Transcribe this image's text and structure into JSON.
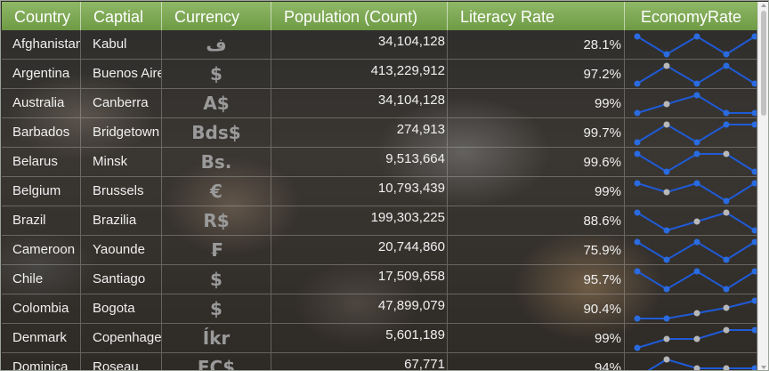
{
  "headers": {
    "country": "Country",
    "capital": "Captial",
    "currency": "Currency",
    "population": "Population (Count)",
    "literacy": "Literacy Rate",
    "economy": "EconomyRate"
  },
  "rows": [
    {
      "country": "Afghanistan",
      "capital": "Kabul",
      "currency": "ﻑ",
      "population": "34,104,128",
      "literacy": "28.1%",
      "economy": [
        1,
        0,
        1,
        0,
        1
      ]
    },
    {
      "country": "Argentina",
      "capital": "Buenos Aires",
      "currency": "$",
      "population": "413,229,912",
      "literacy": "97.2%",
      "economy": [
        0,
        1,
        0,
        1,
        0
      ]
    },
    {
      "country": "Australia",
      "capital": "Canberra",
      "currency": "A$",
      "population": "34,104,128",
      "literacy": "99%",
      "economy": [
        0,
        0.5,
        1,
        0,
        0
      ]
    },
    {
      "country": "Barbados",
      "capital": "Bridgetown",
      "currency": "Bds$",
      "population": "274,913",
      "literacy": "99.7%",
      "economy": [
        0,
        1,
        0,
        1,
        1
      ]
    },
    {
      "country": "Belarus",
      "capital": "Minsk",
      "currency": "Bs.",
      "population": "9,513,664",
      "literacy": "99.6%",
      "economy": [
        1,
        0,
        1,
        1,
        0
      ]
    },
    {
      "country": "Belgium",
      "capital": "Brussels",
      "currency": "€",
      "population": "10,793,439",
      "literacy": "99%",
      "economy": [
        1,
        0.5,
        1,
        0,
        1
      ]
    },
    {
      "country": "Brazil",
      "capital": "Brazilia",
      "currency": "R$",
      "population": "199,303,225",
      "literacy": "88.6%",
      "economy": [
        1,
        0,
        0.5,
        1,
        0
      ]
    },
    {
      "country": "Cameroon",
      "capital": "Yaounde",
      "currency": "₣",
      "population": "20,744,860",
      "literacy": "75.9%",
      "economy": [
        1,
        0,
        1,
        0,
        1
      ]
    },
    {
      "country": "Chile",
      "capital": "Santiago",
      "currency": "$",
      "population": "17,509,658",
      "literacy": "95.7%",
      "economy": [
        1,
        0,
        1,
        0,
        1
      ]
    },
    {
      "country": "Colombia",
      "capital": "Bogota",
      "currency": "$",
      "population": "47,899,079",
      "literacy": "90.4%",
      "economy": [
        0,
        0,
        0.3,
        0.6,
        1
      ]
    },
    {
      "country": "Denmark",
      "capital": "Copenhagen",
      "currency": "Íkr",
      "population": "5,601,189",
      "literacy": "99%",
      "economy": [
        0,
        0.5,
        0.5,
        1,
        1
      ]
    },
    {
      "country": "Dominica",
      "capital": "Roseau",
      "currency": "EC$",
      "population": "67,771",
      "literacy": "94%",
      "economy": [
        0,
        1,
        0.5,
        0.5,
        0.5
      ]
    }
  ],
  "sparkline": {
    "line_color": "#1f5bd6",
    "dot_color": "#2a6be0",
    "mid_dot_color": "#b8b8b8"
  }
}
